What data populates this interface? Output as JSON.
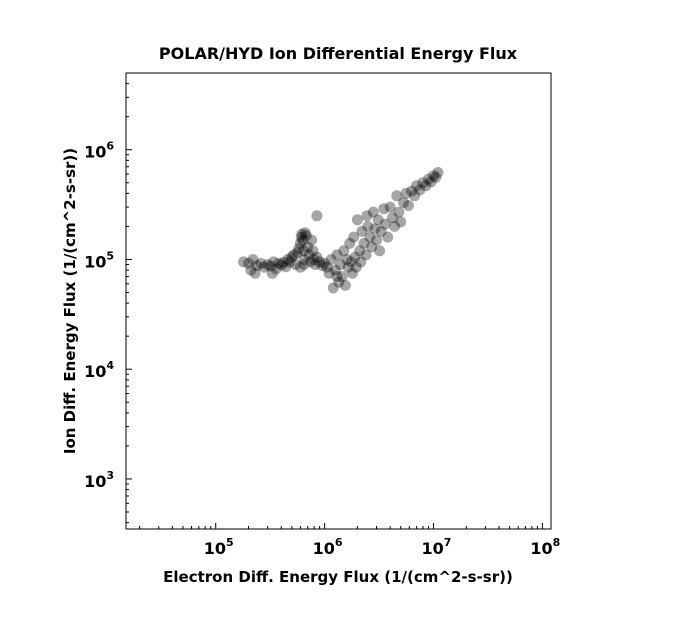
{
  "chart_data": {
    "type": "scatter",
    "title": "POLAR/HYD  Ion Differential Energy Flux",
    "xlabel": "Electron Diff. Energy Flux (1/(cm^2-s-sr))",
    "ylabel": "Ion Diff. Energy Flux (1/(cm^2-s-sr))",
    "x_scale": "log",
    "y_scale": "log",
    "xlim": [
      15000,
      120000000
    ],
    "ylim": [
      350,
      5000000
    ],
    "x_ticks": [
      {
        "base": "10",
        "exp": "5",
        "value": 100000
      },
      {
        "base": "10",
        "exp": "6",
        "value": 1000000
      },
      {
        "base": "10",
        "exp": "7",
        "value": 10000000
      },
      {
        "base": "10",
        "exp": "8",
        "value": 100000000
      }
    ],
    "y_ticks": [
      {
        "base": "10",
        "exp": "3",
        "value": 1000
      },
      {
        "base": "10",
        "exp": "4",
        "value": 10000
      },
      {
        "base": "10",
        "exp": "5",
        "value": 100000
      },
      {
        "base": "10",
        "exp": "6",
        "value": 1000000
      }
    ],
    "grid": false,
    "marker_color": "#000000",
    "series": [
      {
        "points": [
          [
            180000,
            95000
          ],
          [
            200000,
            92000
          ],
          [
            210000,
            80000
          ],
          [
            220000,
            100000
          ],
          [
            240000,
            88000
          ],
          [
            260000,
            92000
          ],
          [
            280000,
            85000
          ],
          [
            300000,
            90000
          ],
          [
            320000,
            87000
          ],
          [
            340000,
            95000
          ],
          [
            360000,
            82000
          ],
          [
            380000,
            92000
          ],
          [
            400000,
            89000
          ],
          [
            420000,
            94000
          ],
          [
            440000,
            86000
          ],
          [
            460000,
            100000
          ],
          [
            480000,
            95000
          ],
          [
            500000,
            105000
          ],
          [
            520000,
            110000
          ],
          [
            540000,
            90000
          ],
          [
            560000,
            115000
          ],
          [
            580000,
            125000
          ],
          [
            600000,
            140000
          ],
          [
            610000,
            160000
          ],
          [
            620000,
            170000
          ],
          [
            630000,
            150000
          ],
          [
            640000,
            120000
          ],
          [
            650000,
            100000
          ],
          [
            660000,
            175000
          ],
          [
            680000,
            165000
          ],
          [
            700000,
            130000
          ],
          [
            720000,
            110000
          ],
          [
            740000,
            95000
          ],
          [
            760000,
            150000
          ],
          [
            780000,
            120000
          ],
          [
            800000,
            100000
          ],
          [
            820000,
            90000
          ],
          [
            850000,
            105000
          ],
          [
            900000,
            95000
          ],
          [
            950000,
            88000
          ],
          [
            1000000,
            92000
          ],
          [
            1050000,
            85000
          ],
          [
            1100000,
            75000
          ],
          [
            1150000,
            100000
          ],
          [
            1200000,
            55000
          ],
          [
            1250000,
            80000
          ],
          [
            1300000,
            110000
          ],
          [
            1350000,
            62000
          ],
          [
            1400000,
            90000
          ],
          [
            1450000,
            70000
          ],
          [
            1500000,
            120000
          ],
          [
            1550000,
            58000
          ],
          [
            1600000,
            100000
          ],
          [
            1650000,
            85000
          ],
          [
            1700000,
            140000
          ],
          [
            1750000,
            95000
          ],
          [
            1800000,
            75000
          ],
          [
            1850000,
            160000
          ],
          [
            1900000,
            105000
          ],
          [
            1950000,
            85000
          ],
          [
            2000000,
            230000
          ],
          [
            2100000,
            120000
          ],
          [
            2150000,
            95000
          ],
          [
            2200000,
            180000
          ],
          [
            2300000,
            140000
          ],
          [
            2400000,
            110000
          ],
          [
            2450000,
            250000
          ],
          [
            2500000,
            200000
          ],
          [
            2600000,
            160000
          ],
          [
            2700000,
            130000
          ],
          [
            2800000,
            270000
          ],
          [
            2900000,
            190000
          ],
          [
            3000000,
            150000
          ],
          [
            3100000,
            230000
          ],
          [
            3200000,
            120000
          ],
          [
            3300000,
            180000
          ],
          [
            3500000,
            290000
          ],
          [
            3600000,
            210000
          ],
          [
            3800000,
            160000
          ],
          [
            4000000,
            300000
          ],
          [
            4200000,
            240000
          ],
          [
            4400000,
            200000
          ],
          [
            4600000,
            380000
          ],
          [
            4800000,
            270000
          ],
          [
            5000000,
            220000
          ],
          [
            5300000,
            330000
          ],
          [
            5600000,
            400000
          ],
          [
            5900000,
            310000
          ],
          [
            6300000,
            420000
          ],
          [
            6700000,
            380000
          ],
          [
            7000000,
            470000
          ],
          [
            7500000,
            430000
          ],
          [
            8000000,
            500000
          ],
          [
            8500000,
            470000
          ],
          [
            9000000,
            540000
          ],
          [
            9500000,
            510000
          ],
          [
            10000000,
            580000
          ],
          [
            10500000,
            560000
          ],
          [
            11000000,
            620000
          ],
          [
            850000,
            250000
          ],
          [
            230000,
            75000
          ],
          [
            330000,
            75000
          ],
          [
            1300000,
            70000
          ],
          [
            650000,
            90000
          ],
          [
            600000,
            85000
          ]
        ]
      }
    ]
  }
}
